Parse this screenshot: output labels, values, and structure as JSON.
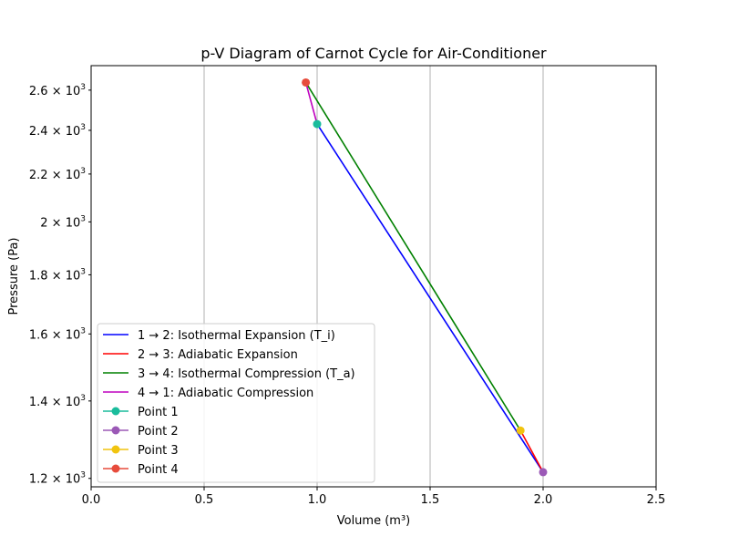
{
  "chart_data": {
    "type": "line",
    "title": "p-V Diagram of Carnot Cycle for Air-Conditioner",
    "xlabel": "Volume (m³)",
    "ylabel": "Pressure (Pa)",
    "xlim": [
      0,
      2.5
    ],
    "ylim": [
      1180,
      2730
    ],
    "yscale": "log",
    "grid": "x-only",
    "legend_position": "lower-left",
    "x_ticks": [
      0.0,
      0.5,
      1.0,
      1.5,
      2.0,
      2.5
    ],
    "x_tick_labels": [
      "0.0",
      "0.5",
      "1.0",
      "1.5",
      "2.0",
      "2.5"
    ],
    "y_ticks": [
      1200,
      1400,
      1600,
      1800,
      2000,
      2200,
      2400,
      2600
    ],
    "y_tick_mantissas": [
      "1.2",
      "1.4",
      "1.6",
      "1.8",
      "2",
      "2.2",
      "2.4",
      "2.6"
    ],
    "y_tick_times": "×",
    "y_tick_base": "10",
    "y_tick_exp": "3",
    "series": [
      {
        "name": "1 → 2: Isothermal Expansion (T_i)",
        "color": "#0000ff",
        "x": [
          1.0,
          2.0
        ],
        "y": [
          2430,
          1215
        ]
      },
      {
        "name": "2 → 3: Adiabatic Expansion",
        "color": "#ff0000",
        "x": [
          2.0,
          1.9
        ],
        "y": [
          1215,
          1320
        ]
      },
      {
        "name": "3 → 4: Isothermal Compression (T_a)",
        "color": "#008000",
        "x": [
          1.9,
          0.95
        ],
        "y": [
          1320,
          2640
        ]
      },
      {
        "name": "4 → 1: Adiabatic Compression",
        "color": "#bf00bf",
        "x": [
          0.95,
          1.0
        ],
        "y": [
          2640,
          2430
        ]
      }
    ],
    "points": [
      {
        "name": "Point 1",
        "color": "#1abc9c",
        "x": 1.0,
        "y": 2430
      },
      {
        "name": "Point 2",
        "color": "#9b59b6",
        "x": 2.0,
        "y": 1215
      },
      {
        "name": "Point 3",
        "color": "#f1c40f",
        "x": 1.9,
        "y": 1320
      },
      {
        "name": "Point 4",
        "color": "#e74c3c",
        "x": 0.95,
        "y": 2640
      }
    ]
  }
}
